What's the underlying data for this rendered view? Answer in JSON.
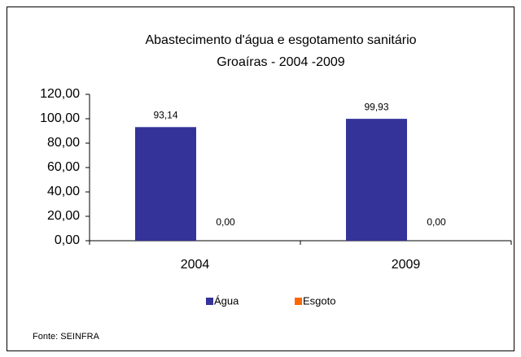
{
  "chart_data": {
    "type": "bar",
    "title": [
      "Abastecimento d'água e esgotamento sanitário",
      "Groaíras - 2004 -2009"
    ],
    "categories": [
      "2004",
      "2009"
    ],
    "series": [
      {
        "name": "Água",
        "color": "#333399",
        "values": [
          93.14,
          99.93
        ],
        "value_labels": [
          "93,14",
          "99,93"
        ]
      },
      {
        "name": "Esgoto",
        "color": "#ff6600",
        "values": [
          0,
          0
        ],
        "value_labels": [
          "0,00",
          "0,00"
        ]
      }
    ],
    "ylim": [
      0,
      120
    ],
    "yticks": [
      {
        "value": 0,
        "label": "0,00"
      },
      {
        "value": 20,
        "label": "20,00"
      },
      {
        "value": 40,
        "label": "40,00"
      },
      {
        "value": 60,
        "label": "60,00"
      },
      {
        "value": 80,
        "label": "80,00"
      },
      {
        "value": 100,
        "label": "100,00"
      },
      {
        "value": 120,
        "label": "120,00"
      }
    ],
    "legend": "bottom",
    "source": "Fonte: SEINFRA"
  }
}
